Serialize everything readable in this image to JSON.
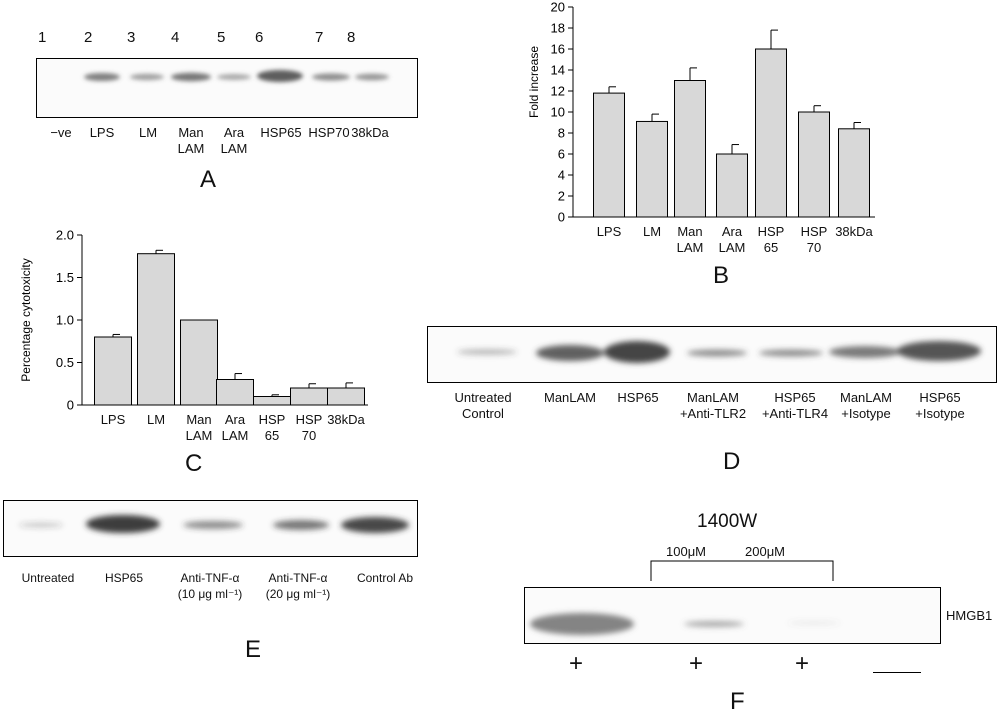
{
  "panelA": {
    "letter": "A",
    "lane_numbers": [
      "1",
      "2",
      "3",
      "4",
      "5",
      "6",
      "7",
      "8"
    ],
    "lane_labels": [
      "−ve",
      "LPS",
      "LM",
      "Man\nLAM",
      "Ara\nLAM",
      "HSP65",
      "HSP70",
      "38kDa"
    ]
  },
  "panelB": {
    "letter": "B",
    "ylabel": "Fold increase",
    "categories": [
      "LPS",
      "LM",
      "Man\nLAM",
      "Ara\nLAM",
      "HSP\n65",
      "HSP\n70",
      "38kDa"
    ]
  },
  "panelC": {
    "letter": "C",
    "ylabel": "Percentage cytotoxicity",
    "categories": [
      "LPS",
      "LM",
      "Man\nLAM",
      "Ara\nLAM",
      "HSP\n65",
      "HSP\n70",
      "38kDa"
    ]
  },
  "panelD": {
    "letter": "D",
    "lane_labels": [
      "Untreated\nControl",
      "ManLAM",
      "HSP65",
      "ManLAM\n+Anti-TLR2",
      "HSP65\n+Anti-TLR4",
      "ManLAM\n+Isotype",
      "HSP65\n+Isotype"
    ]
  },
  "panelE": {
    "letter": "E",
    "lane_labels": [
      "Untreated",
      "HSP65",
      "Anti-TNF-α\n(10 μg ml⁻¹)",
      "Anti-TNF-α\n(20 μg ml⁻¹)",
      "Control Ab"
    ]
  },
  "panelF": {
    "letter": "F",
    "title": "1400W",
    "conc1": "100μM",
    "conc2": "200μM",
    "band_label": "HMGB1",
    "plus_marks": [
      "+",
      "+",
      "+"
    ]
  },
  "chart_data": [
    {
      "type": "bar",
      "panel": "B",
      "categories": [
        "LPS",
        "LM",
        "Man LAM",
        "Ara LAM",
        "HSP 65",
        "HSP 70",
        "38kDa"
      ],
      "values": [
        11.8,
        9.1,
        13.0,
        6.0,
        16.0,
        10.0,
        8.4
      ],
      "errors": [
        0.6,
        0.7,
        1.2,
        0.9,
        1.8,
        0.6,
        0.6
      ],
      "xlabel": "",
      "ylabel": "Fold increase",
      "ylim": [
        0,
        20
      ],
      "yticks": [
        0,
        2,
        4,
        6,
        8,
        10,
        12,
        14,
        16,
        18,
        20
      ],
      "bar_color": "#d8d8d8"
    },
    {
      "type": "bar",
      "panel": "C",
      "categories": [
        "LPS",
        "LM",
        "Man LAM",
        "Ara LAM",
        "HSP 65",
        "HSP 70",
        "38kDa"
      ],
      "values": [
        0.8,
        1.78,
        1.0,
        0.3,
        0.1,
        0.2,
        0.2
      ],
      "errors": [
        0.03,
        0.04,
        0.0,
        0.07,
        0.02,
        0.05,
        0.06
      ],
      "xlabel": "",
      "ylabel": "Percentage cytotoxicity",
      "ylim": [
        0,
        2.0
      ],
      "yticks": [
        "0",
        "0.5",
        "1.0",
        "1.5",
        "2.0"
      ],
      "bar_color": "#d8d8d8"
    }
  ]
}
